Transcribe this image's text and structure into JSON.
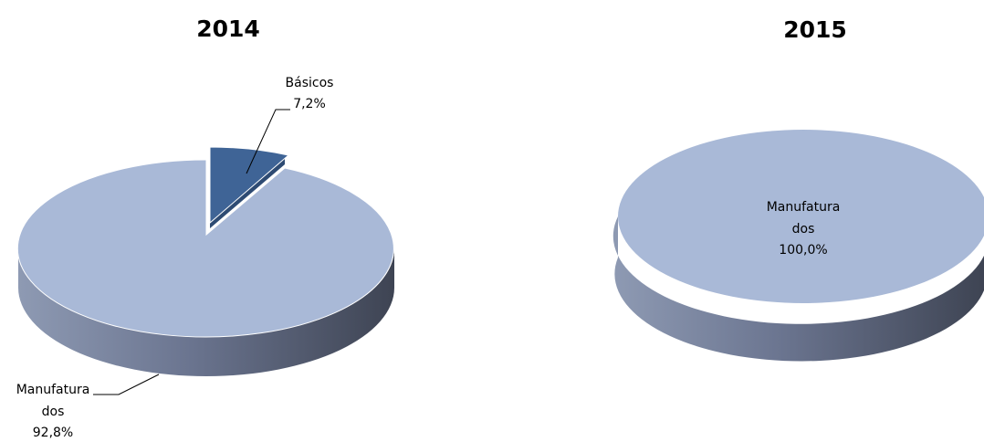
{
  "chart_data": [
    {
      "type": "pie",
      "title": "2014",
      "slices": [
        {
          "label_line1": "Básicos",
          "label_line2": "",
          "percent_label": "7,2%",
          "value": 7.2,
          "color": "#3F6496"
        },
        {
          "label_line1": "Manufatura",
          "label_line2": "dos",
          "percent_label": "92,8%",
          "value": 92.8,
          "color": "#A9B9D7"
        }
      ]
    },
    {
      "type": "pie",
      "title": "2015",
      "slices": [
        {
          "label_line1": "Manufatura",
          "label_line2": "dos",
          "percent_label": "100,0%",
          "value": 100.0,
          "color": "#A9B9D7"
        }
      ]
    }
  ]
}
